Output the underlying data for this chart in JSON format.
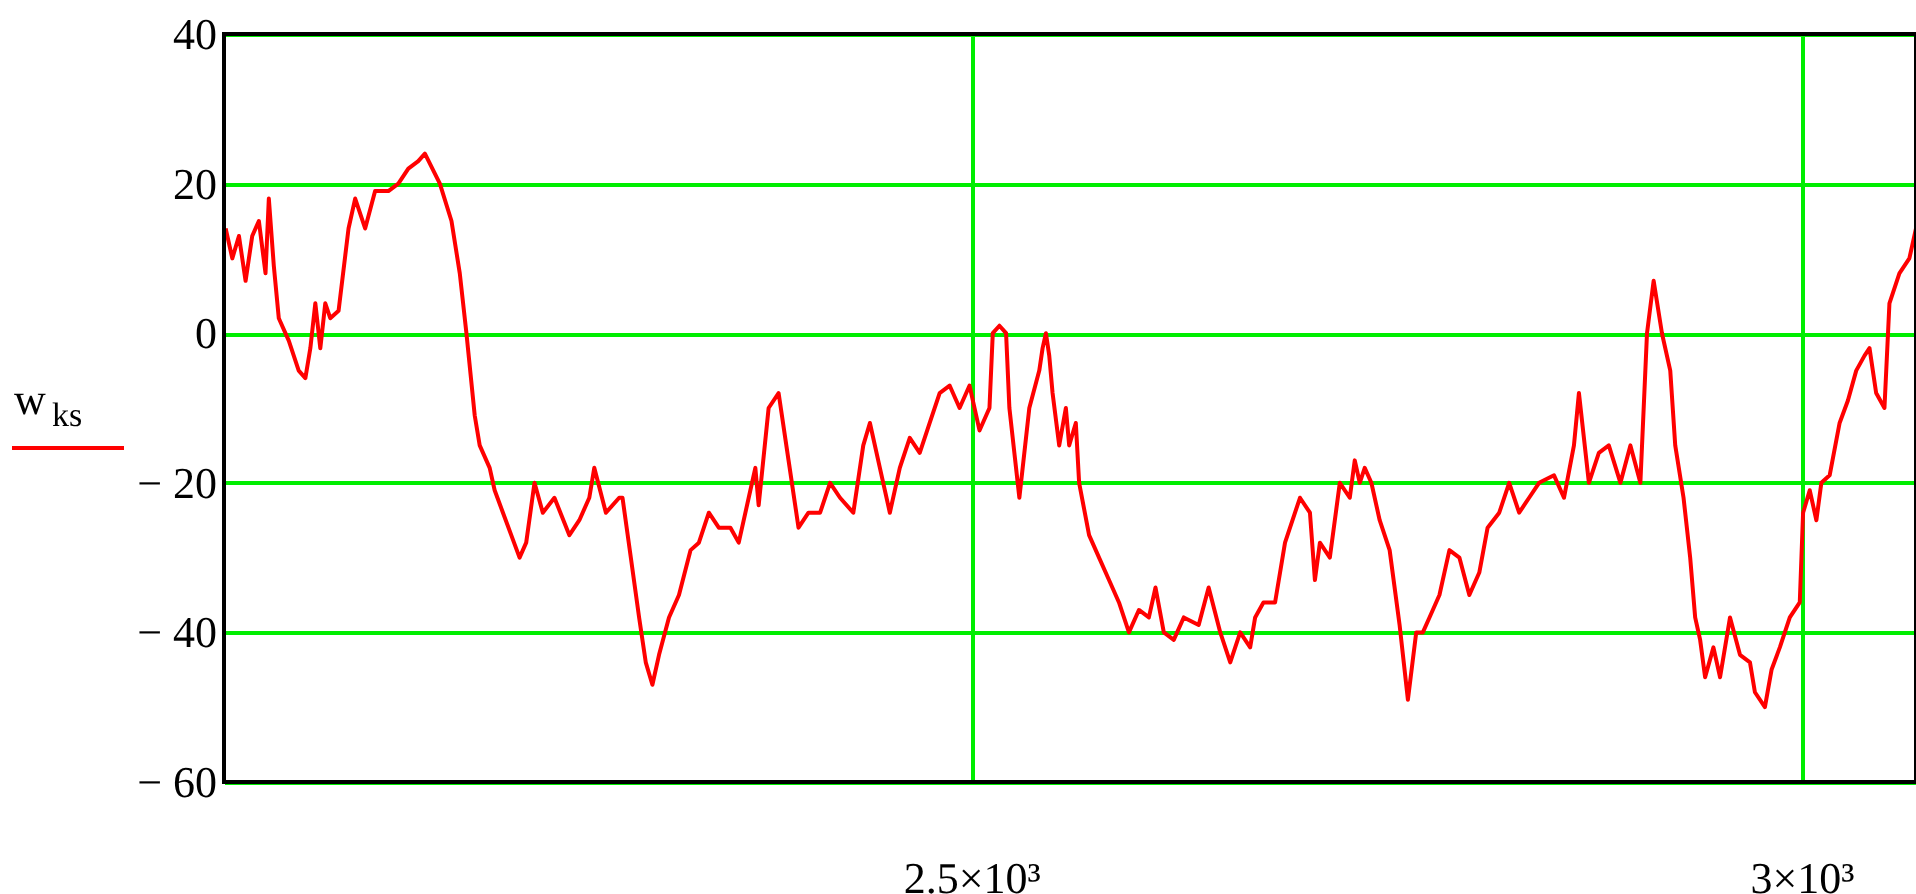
{
  "chart_data": {
    "type": "line",
    "x": [
      2051,
      2055,
      2059,
      2063,
      2067,
      2071,
      2075,
      2077,
      2080,
      2083,
      2089,
      2095,
      2099,
      2102,
      2105,
      2108,
      2111,
      2114,
      2119,
      2125,
      2129,
      2135,
      2141,
      2149,
      2155,
      2161,
      2167,
      2171,
      2180,
      2187,
      2192,
      2196,
      2201,
      2204,
      2210,
      2213,
      2218,
      2223,
      2228,
      2232,
      2237,
      2242,
      2249,
      2258,
      2264,
      2270,
      2273,
      2280,
      2288,
      2290,
      2295,
      2300,
      2304,
      2308,
      2312,
      2318,
      2324,
      2331,
      2336,
      2342,
      2348,
      2355,
      2360,
      2366,
      2370,
      2372,
      2378,
      2384,
      2390,
      2396,
      2402,
      2409,
      2415,
      2421,
      2429,
      2435,
      2439,
      2445,
      2451,
      2457,
      2463,
      2469,
      2475,
      2481,
      2487,
      2493,
      2499,
      2505,
      2511,
      2513,
      2517,
      2521,
      2523,
      2529,
      2535,
      2541,
      2543,
      2545,
      2547,
      2549,
      2553,
      2557,
      2559,
      2563,
      2565,
      2571,
      2577,
      2583,
      2589,
      2595,
      2601,
      2607,
      2611,
      2616,
      2622,
      2628,
      2637,
      2643,
      2650,
      2656,
      2662,
      2668,
      2671,
      2676,
      2683,
      2689,
      2698,
      2704,
      2707,
      2710,
      2716,
      2722,
      2728,
      2731,
      2734,
      2737,
      2741,
      2746,
      2752,
      2758,
      2763,
      2768,
      2772,
      2776,
      2782,
      2788,
      2794,
      2800,
      2806,
      2811,
      2818,
      2824,
      2830,
      2836,
      2842,
      2851,
      2857,
      2863,
      2866,
      2872,
      2878,
      2884,
      2891,
      2897,
      2903,
      2907,
      2911,
      2916,
      2921,
      2924,
      2929,
      2933,
      2936,
      2939,
      2942,
      2947,
      2951,
      2957,
      2963,
      2969,
      2972,
      2978,
      2982,
      2987,
      2993,
      2999,
      3001,
      3005,
      3009,
      3012,
      3017,
      3023,
      3028,
      3033,
      3038,
      3041,
      3045,
      3050,
      3053,
      3059,
      3065,
      3069
    ],
    "series": [
      {
        "name": "w$_{ks}$",
        "color": "#ff0000",
        "values": [
          14,
          10,
          13,
          7,
          13,
          15,
          8,
          18,
          9,
          2,
          -1,
          -5,
          -6,
          -2,
          4,
          -2,
          4,
          2,
          3,
          14,
          18,
          14,
          19,
          19,
          20,
          22,
          23,
          24,
          20,
          15,
          8,
          0,
          -11,
          -15,
          -18,
          -21,
          -24,
          -27,
          -30,
          -28,
          -20,
          -24,
          -22,
          -27,
          -25,
          -22,
          -18,
          -24,
          -22,
          -22,
          -30,
          -38,
          -44,
          -47,
          -43,
          -38,
          -35,
          -29,
          -28,
          -24,
          -26,
          -26,
          -28,
          -22,
          -18,
          -23,
          -10,
          -8,
          -17,
          -26,
          -24,
          -24,
          -20,
          -22,
          -24,
          -15,
          -12,
          -18,
          -24,
          -18,
          -14,
          -16,
          -12,
          -8,
          -7,
          -10,
          -7,
          -13,
          -10,
          0,
          1,
          0,
          -10,
          -22,
          -10,
          -5,
          -2,
          0,
          -3,
          -8,
          -15,
          -10,
          -15,
          -12,
          -20,
          -27,
          -30,
          -33,
          -36,
          -40,
          -37,
          -38,
          -34,
          -40,
          -41,
          -38,
          -39,
          -34,
          -40,
          -44,
          -40,
          -42,
          -38,
          -36,
          -36,
          -28,
          -22,
          -24,
          -33,
          -28,
          -30,
          -20,
          -22,
          -17,
          -20,
          -18,
          -20,
          -25,
          -29,
          -39,
          -49,
          -40,
          -40,
          -38,
          -35,
          -29,
          -30,
          -35,
          -32,
          -26,
          -24,
          -20,
          -24,
          -22,
          -20,
          -19,
          -22,
          -15,
          -8,
          -20,
          -16,
          -15,
          -20,
          -15,
          -20,
          0,
          7,
          0,
          -5,
          -15,
          -22,
          -30,
          -38,
          -41,
          -46,
          -42,
          -46,
          -38,
          -43,
          -44,
          -48,
          -50,
          -45,
          -42,
          -38,
          -36,
          -24,
          -21,
          -25,
          -20,
          -19,
          -12,
          -9,
          -5,
          -3,
          -2,
          -8,
          -10,
          4,
          8,
          10,
          14
        ]
      }
    ],
    "xlim": [
      2050,
      3069
    ],
    "xticks": [
      {
        "value": 2500,
        "label": "2.5×10³"
      },
      {
        "value": 3000,
        "label": "3×10³"
      }
    ],
    "ylim": [
      -60,
      40
    ],
    "yticks": [
      {
        "value": -60,
        "label": "− 60"
      },
      {
        "value": -40,
        "label": "− 40"
      },
      {
        "value": -20,
        "label": "− 20"
      },
      0,
      20,
      40
    ],
    "grid": true,
    "legend": "left",
    "line_style": "solid",
    "marker": "none"
  }
}
